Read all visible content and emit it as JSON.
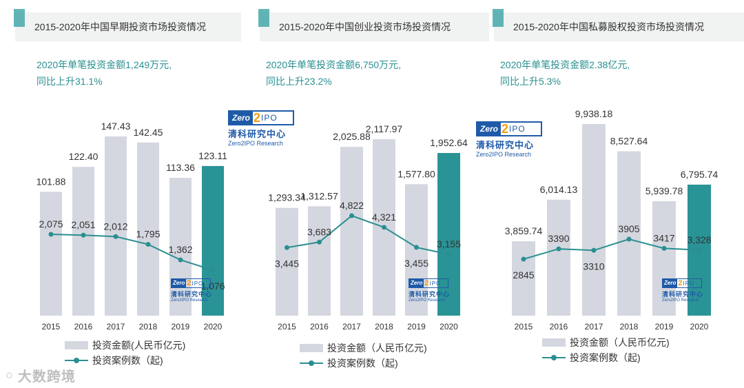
{
  "colors": {
    "bar": "#d4d7df",
    "highlight": "#2a9396",
    "line": "#2a8f91",
    "accent": "#2f9d9f"
  },
  "legend": {
    "bar_label_1": "投资金额(人民币亿元)",
    "bar_label": "投资金额（人民币亿元)",
    "line_label": "投资案例数（起)"
  },
  "logo": {
    "zero": "Zero",
    "two": "2",
    "ipo": "IPO",
    "cn": "清科研究中心",
    "en": "Zero2IPO Research"
  },
  "watermark": "大数跨境",
  "panels": [
    {
      "title": "2015-2020年中国早期投资市场投资情况",
      "subtitle_line1": "2020年单笔投资金额1,249万元,",
      "subtitle_line2": "同比上升31.1%"
    },
    {
      "title": "2015-2020年中国创业投资市场投资情况",
      "subtitle_line1": "2020年单笔投资金额6,750万元,",
      "subtitle_line2": "同比上升23.2%"
    },
    {
      "title": "2015-2020年中国私募股权投资市场投资情况",
      "subtitle_line1": "2020年单笔投资金额2.38亿元,",
      "subtitle_line2": "同比上升5.3%"
    }
  ],
  "chart_data": [
    {
      "type": "bar+line",
      "title": "2015-2020年中国早期投资市场投资情况",
      "categories": [
        "2015",
        "2016",
        "2017",
        "2018",
        "2019",
        "2020"
      ],
      "series": [
        {
          "name": "投资金额(人民币亿元)",
          "type": "bar",
          "values": [
            101.88,
            122.4,
            147.43,
            142.45,
            113.36,
            123.11
          ],
          "labels": [
            "101.88",
            "122.40",
            "147.43",
            "142.45",
            "113.36",
            "123.11"
          ]
        },
        {
          "name": "投资案例数（起)",
          "type": "line",
          "values": [
            2075,
            2051,
            2012,
            1795,
            1362,
            1076
          ],
          "labels": [
            "2,075",
            "2,051",
            "2,012",
            "1,795",
            "1,362",
            "1,076"
          ]
        }
      ]
    },
    {
      "type": "bar+line",
      "title": "2015-2020年中国创业投资市场投资情况",
      "categories": [
        "2015",
        "2016",
        "2017",
        "2018",
        "2019",
        "2020"
      ],
      "series": [
        {
          "name": "投资金额（人民币亿元)",
          "type": "bar",
          "values": [
            1293.34,
            1312.57,
            2025.88,
            2117.97,
            1577.8,
            1952.64
          ],
          "labels": [
            "1,293.34",
            "1,312.57",
            "2,025.88",
            "2,117.97",
            "1,577.80",
            "1,952.64"
          ]
        },
        {
          "name": "投资案例数（起)",
          "type": "line",
          "values": [
            3445,
            3683,
            4822,
            4321,
            3455,
            3155
          ],
          "labels": [
            "3,445",
            "3,683",
            "4,822",
            "4,321",
            "3,455",
            "3,155"
          ]
        }
      ]
    },
    {
      "type": "bar+line",
      "title": "2015-2020年中国私募股权投资市场投资情况",
      "categories": [
        "2015",
        "2016",
        "2017",
        "2018",
        "2019",
        "2020"
      ],
      "series": [
        {
          "name": "投资金额（人民币亿元)",
          "type": "bar",
          "values": [
            3859.74,
            6014.13,
            9938.18,
            8527.64,
            5939.78,
            6795.74
          ],
          "labels": [
            "3,859.74",
            "6,014.13",
            "9,938.18",
            "8,527.64",
            "5,939.78",
            "6,795.74"
          ]
        },
        {
          "name": "投资案例数（起)",
          "type": "line",
          "values": [
            2845,
            3390,
            3310,
            3905,
            3417,
            3328
          ],
          "labels": [
            "2845",
            "3390",
            "3310",
            "3905",
            "3417",
            "3,328"
          ]
        }
      ]
    }
  ]
}
